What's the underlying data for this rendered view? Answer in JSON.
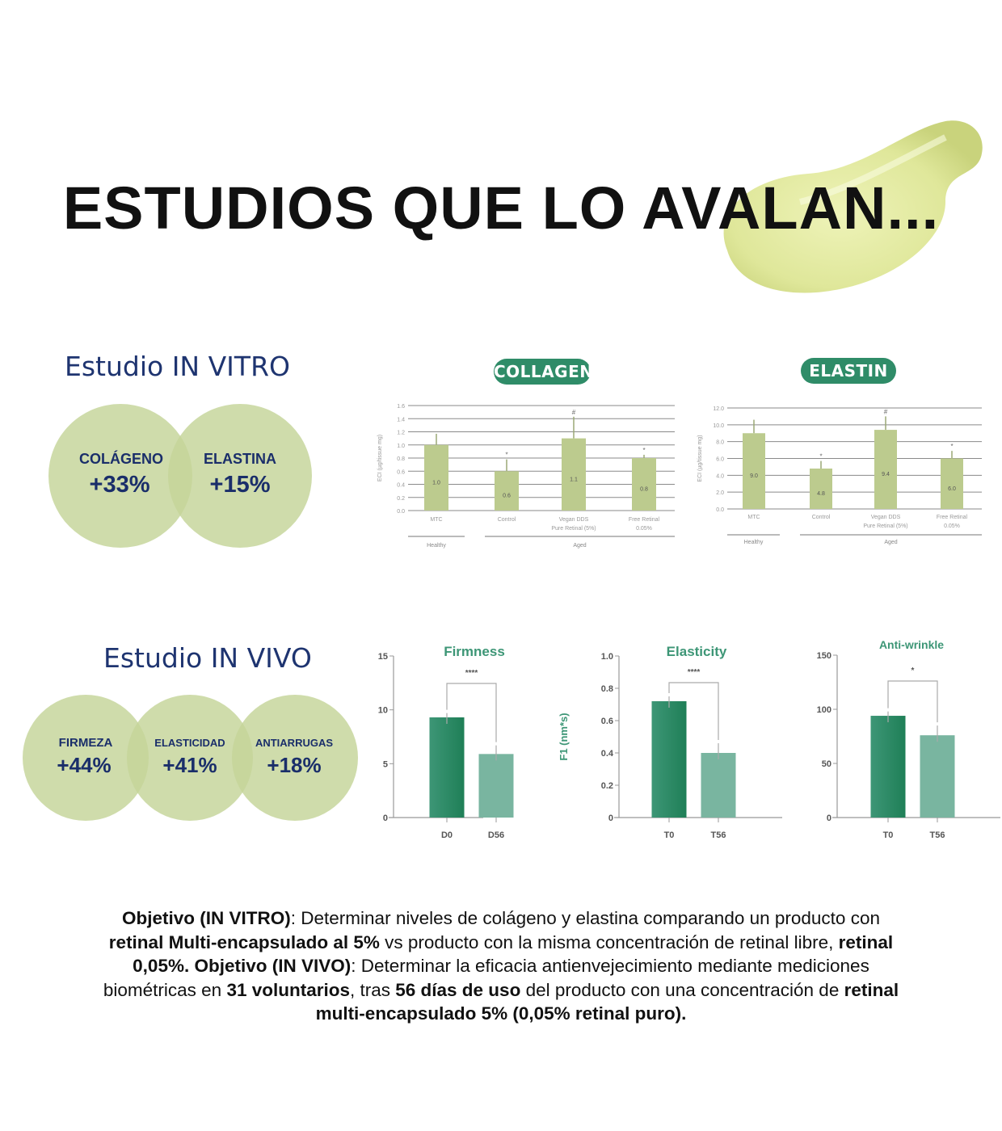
{
  "title": "ESTUDIOS QUE LO AVALAN...",
  "in_vitro": {
    "heading": "Estudio IN VITRO",
    "circles": [
      {
        "label": "COLÁGENO",
        "value": "+33%"
      },
      {
        "label": "ELASTINA",
        "value": "+15%"
      }
    ]
  },
  "in_vivo": {
    "heading": "Estudio IN VIVO",
    "circles": [
      {
        "label": "FIRMEZA",
        "value": "+44%"
      },
      {
        "label": "ELASTICIDAD",
        "value": "+41%"
      },
      {
        "label": "ANTIARRUGAS",
        "value": "+18%"
      }
    ]
  },
  "colors": {
    "navy": "#1e3470",
    "circle": "#c4d498",
    "pill": "#2f8c68",
    "vitro_bar": "#bccb8e",
    "vivo_dark": "#2a8a63",
    "vivo_light": "#79b5a0"
  },
  "chart_data": [
    {
      "type": "bar",
      "title": "COLLAGEN",
      "ylabel": "ECI (µg/tissue mg)",
      "ylim": [
        0,
        1.6
      ],
      "yticks": [
        "0.0",
        "0.2",
        "0.4",
        "0.6",
        "0.8",
        "1.0",
        "1.2",
        "1.4",
        "1.6"
      ],
      "categories": [
        [
          "MTC"
        ],
        [
          "Control"
        ],
        [
          "Vegan DDS",
          "Pure Retinal (5%)"
        ],
        [
          "Free Retinal",
          "0.05%"
        ]
      ],
      "values": [
        1.0,
        0.6,
        1.1,
        0.8
      ],
      "value_labels": [
        "1.0",
        "0.6",
        "1.1",
        "0.8"
      ],
      "error_top": [
        1.17,
        0.78,
        1.43,
        0.85
      ],
      "annotations": [
        "",
        "*",
        "#",
        "*"
      ],
      "groups": [
        {
          "label": "Healthy",
          "span": [
            0,
            0
          ]
        },
        {
          "label": "Aged",
          "span": [
            1,
            3
          ]
        }
      ],
      "grid": true
    },
    {
      "type": "bar",
      "title": "ELASTIN",
      "ylabel": "ECI (µg/tissue mg)",
      "ylim": [
        0,
        12
      ],
      "yticks": [
        "0.0",
        "2.0",
        "4.0",
        "6.0",
        "8.0",
        "10.0",
        "12.0"
      ],
      "categories": [
        [
          "MTC"
        ],
        [
          "Control"
        ],
        [
          "Vegan DDS",
          "Pure Retinal (5%)"
        ],
        [
          "Free Retinal",
          "0.05%"
        ]
      ],
      "values": [
        9.0,
        4.8,
        9.4,
        6.0
      ],
      "value_labels": [
        "9.0",
        "4.8",
        "9.4",
        "6.0"
      ],
      "error_top": [
        10.6,
        5.7,
        11.0,
        6.9
      ],
      "annotations": [
        "",
        "*",
        "#",
        "*"
      ],
      "groups": [
        {
          "label": "Healthy",
          "span": [
            0,
            0
          ]
        },
        {
          "label": "Aged",
          "span": [
            1,
            3
          ]
        }
      ],
      "grid": true
    },
    {
      "type": "bar",
      "title": "Firmness",
      "ylim": [
        0,
        15
      ],
      "yticks": [
        "0",
        "5",
        "10",
        "15"
      ],
      "categories": [
        "D0",
        "D56"
      ],
      "values": [
        9.3,
        5.9
      ],
      "error_top": [
        9.7,
        6.7
      ],
      "significance": "****",
      "grid": false
    },
    {
      "type": "bar",
      "title": "Elasticity",
      "ylabel": "F1 (nm*s)",
      "ylim": [
        0,
        1.0
      ],
      "yticks": [
        "0",
        "0.2",
        "0.4",
        "0.6",
        "0.8",
        "1.0"
      ],
      "categories": [
        "T0",
        "T56"
      ],
      "values": [
        0.72,
        0.4
      ],
      "error_top": [
        0.75,
        0.46
      ],
      "significance": "****",
      "grid": false
    },
    {
      "type": "bar",
      "title": "Anti-wrinkle",
      "ylim": [
        0,
        150
      ],
      "yticks": [
        "0",
        "50",
        "100",
        "150"
      ],
      "categories": [
        "T0",
        "T56"
      ],
      "values": [
        94,
        76
      ],
      "error_top": [
        98,
        85
      ],
      "significance": "*",
      "grid": false
    }
  ],
  "objective_lines": [
    [
      {
        "t": "Objetivo (IN VITRO)",
        "b": true
      },
      {
        "t": ": Determinar niveles de colágeno y elastina comparando un producto con",
        "b": false
      }
    ],
    [
      {
        "t": "retinal Multi-encapsulado al 5%",
        "b": true
      },
      {
        "t": " vs producto con la misma concentración de retinal libre, ",
        "b": false
      },
      {
        "t": "retinal",
        "b": true
      }
    ],
    [
      {
        "t": "0,05%. Objetivo (IN VIVO)",
        "b": true
      },
      {
        "t": ": Determinar la eficacia antienvejecimiento mediante mediciones",
        "b": false
      }
    ],
    [
      {
        "t": "biométricas en ",
        "b": false
      },
      {
        "t": "31 voluntarios",
        "b": true
      },
      {
        "t": ", tras ",
        "b": false
      },
      {
        "t": "56 días de uso",
        "b": true
      },
      {
        "t": " del producto con una concentración de ",
        "b": false
      },
      {
        "t": "retinal",
        "b": true
      }
    ],
    [
      {
        "t": "multi-encapsulado 5% (0,05% retinal puro).",
        "b": true
      }
    ]
  ]
}
